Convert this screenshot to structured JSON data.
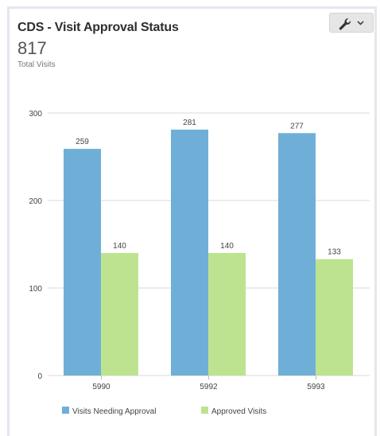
{
  "widget": {
    "title": "CDS - Visit Approval Status",
    "total_value": "817",
    "total_label": "Total Visits",
    "tools_icon": "wrench-icon",
    "dropdown_icon": "chevron-down-icon"
  },
  "colors": {
    "series_1": "#6fafd7",
    "series_2": "#bde390",
    "grid": "#d8d8d8",
    "text": "#444444"
  },
  "chart_data": {
    "type": "bar",
    "title": "",
    "xlabel": "",
    "ylabel": "",
    "categories": [
      "5990",
      "5992",
      "5993"
    ],
    "series": [
      {
        "name": "Visits Needing Approval",
        "values": [
          259,
          281,
          277
        ]
      },
      {
        "name": "Approved Visits",
        "values": [
          140,
          140,
          133
        ]
      }
    ],
    "ylim": [
      0,
      300
    ],
    "yticks": [
      0,
      100,
      200,
      300
    ],
    "grid": true,
    "legend": "bottom-left",
    "data_labels": true
  }
}
